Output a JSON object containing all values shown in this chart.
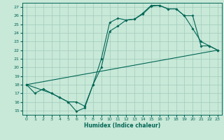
{
  "xlabel": "Humidex (Indice chaleur)",
  "xlim": [
    -0.5,
    23.5
  ],
  "ylim": [
    14.5,
    27.5
  ],
  "xticks": [
    0,
    1,
    2,
    3,
    4,
    5,
    6,
    7,
    8,
    9,
    10,
    11,
    12,
    13,
    14,
    15,
    16,
    17,
    18,
    19,
    20,
    21,
    22,
    23
  ],
  "yticks": [
    15,
    16,
    17,
    18,
    19,
    20,
    21,
    22,
    23,
    24,
    25,
    26,
    27
  ],
  "bg_color": "#c8e8d8",
  "line_color": "#006655",
  "grid_color": "#a0ccbb",
  "line1_x": [
    0,
    1,
    2,
    3,
    4,
    5,
    6,
    7,
    8,
    9,
    10,
    11,
    12,
    13,
    14,
    15,
    16,
    17,
    18,
    19,
    20,
    21,
    22,
    23
  ],
  "line1_y": [
    18,
    17,
    17.5,
    17,
    16.5,
    16,
    14.9,
    15.3,
    18.0,
    21.0,
    25.2,
    25.7,
    25.5,
    25.6,
    26.3,
    27.2,
    27.2,
    26.8,
    26.8,
    26.0,
    24.5,
    23.0,
    22.5,
    22.0
  ],
  "line2_x": [
    0,
    3,
    4,
    5,
    6,
    7,
    8,
    9,
    10,
    11,
    12,
    13,
    14,
    15,
    16,
    17,
    18,
    19,
    20,
    21,
    22,
    23
  ],
  "line2_y": [
    18,
    17,
    16.5,
    16,
    16.0,
    15.5,
    18.0,
    20.0,
    24.2,
    24.8,
    25.5,
    25.6,
    26.2,
    27.1,
    27.2,
    26.8,
    26.8,
    26.0,
    26.0,
    22.5,
    22.5,
    22.0
  ],
  "line3_x": [
    0,
    23
  ],
  "line3_y": [
    18,
    22
  ]
}
